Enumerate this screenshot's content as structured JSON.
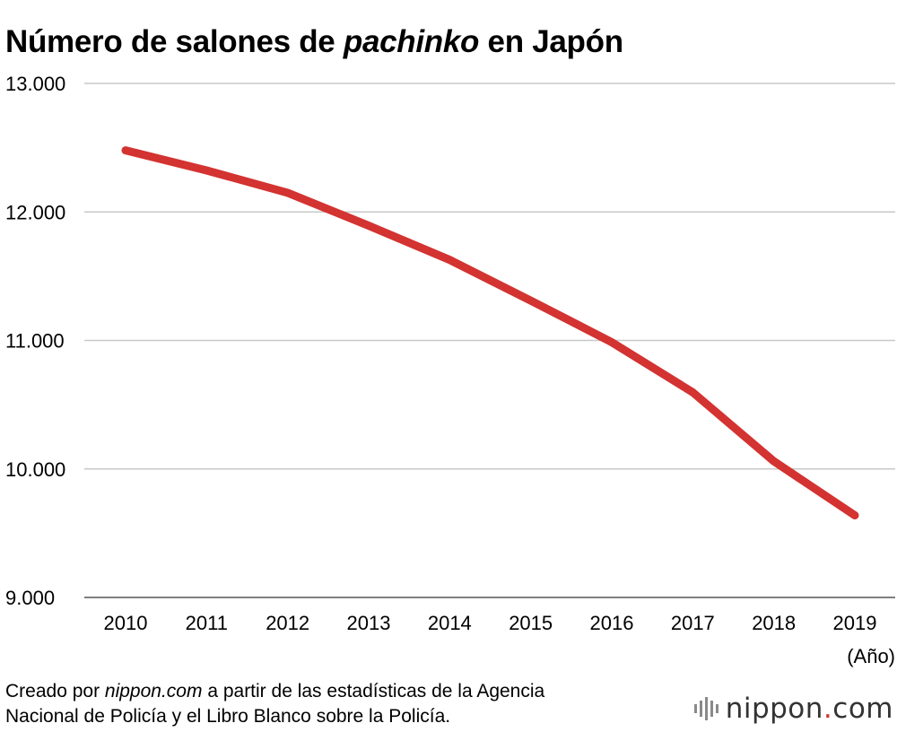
{
  "header": {
    "title_pre": "Número de salones de ",
    "title_em": "pachinko",
    "title_post": " en Japón"
  },
  "chart_data": {
    "type": "line",
    "title": "Número de salones de pachinko en Japón",
    "xlabel": "(Año)",
    "ylabel": "",
    "categories": [
      "2010",
      "2011",
      "2012",
      "2013",
      "2014",
      "2015",
      "2016",
      "2017",
      "2018",
      "2019"
    ],
    "series": [
      {
        "values": [
          12479,
          12323,
          12149,
          11893,
          11627,
          11310,
          10986,
          10596,
          10060,
          9639
        ]
      }
    ],
    "ylim": [
      9000,
      13000
    ],
    "yticks": [
      13000,
      12000,
      11000,
      10000,
      9000
    ],
    "ytick_labels": [
      "13.000",
      "12.000",
      "11.000",
      "10.000",
      "9.000"
    ],
    "grid": true,
    "line_color": "#d33331"
  },
  "footer": {
    "source_pre": "Creado por ",
    "source_em": "nippon.com",
    "source_post": " a partir de las estadísticas de la Agencia",
    "source_line2": "Nacional de Policía y el Libro Blanco sobre la Policía."
  },
  "brand": {
    "name": "nippon",
    "dot": ".",
    "tld": "com"
  }
}
